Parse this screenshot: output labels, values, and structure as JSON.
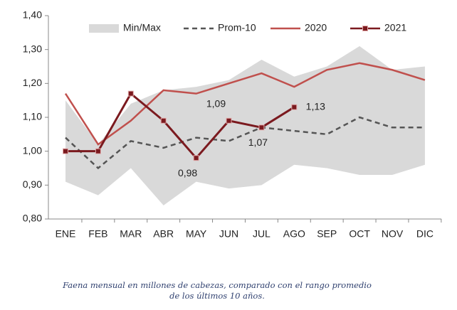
{
  "chart_data": {
    "type": "line",
    "categories": [
      "ENE",
      "FEB",
      "MAR",
      "ABR",
      "MAY",
      "JUN",
      "JUL",
      "AGO",
      "SEP",
      "OCT",
      "NOV",
      "DIC"
    ],
    "ylim": [
      0.8,
      1.4
    ],
    "yticks": [
      {
        "value": 0.8,
        "label": "0,80"
      },
      {
        "value": 0.9,
        "label": "0,90"
      },
      {
        "value": 1.0,
        "label": "1,00"
      },
      {
        "value": 1.1,
        "label": "1,10"
      },
      {
        "value": 1.2,
        "label": "1,20"
      },
      {
        "value": 1.3,
        "label": "1,30"
      },
      {
        "value": 1.4,
        "label": "1,40"
      }
    ],
    "grid": false,
    "series": [
      {
        "name": "Min/Max",
        "color": "#d9d9d9",
        "style": "band",
        "high": [
          1.15,
          1.02,
          1.14,
          1.18,
          1.19,
          1.21,
          1.27,
          1.22,
          1.25,
          1.31,
          1.24,
          1.25
        ],
        "low": [
          0.91,
          0.87,
          0.95,
          0.84,
          0.91,
          0.89,
          0.9,
          0.96,
          0.95,
          0.93,
          0.93,
          0.96
        ]
      },
      {
        "name": "Prom-10",
        "color": "#555555",
        "style": "dashed",
        "values": [
          1.04,
          0.95,
          1.03,
          1.01,
          1.04,
          1.03,
          1.07,
          1.06,
          1.05,
          1.1,
          1.07,
          1.07
        ]
      },
      {
        "name": "2020",
        "color": "#c0504d",
        "style": "solid",
        "values": [
          1.17,
          1.02,
          1.09,
          1.18,
          1.17,
          1.2,
          1.23,
          1.19,
          1.24,
          1.26,
          1.24,
          1.21
        ]
      },
      {
        "name": "2021",
        "color": "#7b1a1f",
        "style": "markers",
        "values": [
          1.0,
          1.0,
          1.17,
          1.09,
          0.98,
          1.09,
          1.07,
          1.13,
          null,
          null,
          null,
          null
        ],
        "value_labels": [
          null,
          null,
          null,
          null,
          "0,98",
          "1,09",
          "1,07",
          "1,13",
          null,
          null,
          null,
          null
        ]
      }
    ],
    "caption": [
      "Faena mensual en millones de cabezas, comparado con el rango promedio",
      "de los últimos 10 años."
    ]
  }
}
